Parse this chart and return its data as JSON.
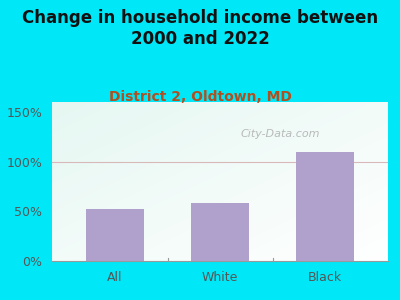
{
  "title": "Change in household income between\n2000 and 2022",
  "subtitle": "District 2, Oldtown, MD",
  "categories": [
    "All",
    "White",
    "Black"
  ],
  "values": [
    52,
    58,
    110
  ],
  "bar_color": "#b0a0cc",
  "title_fontsize": 12,
  "subtitle_fontsize": 10,
  "subtitle_color": "#b05020",
  "tick_label_color": "#555555",
  "background_outer": "#00e8f8",
  "ylim": [
    0,
    160
  ],
  "yticks": [
    0,
    50,
    100,
    150
  ],
  "ytick_labels": [
    "0%",
    "50%",
    "100%",
    "150%"
  ],
  "watermark": "City-Data.com",
  "gridline_color": "#d8b8b8",
  "grid_bg_left": "#c8e8d8",
  "grid_bg_right": "#e8f0ec"
}
